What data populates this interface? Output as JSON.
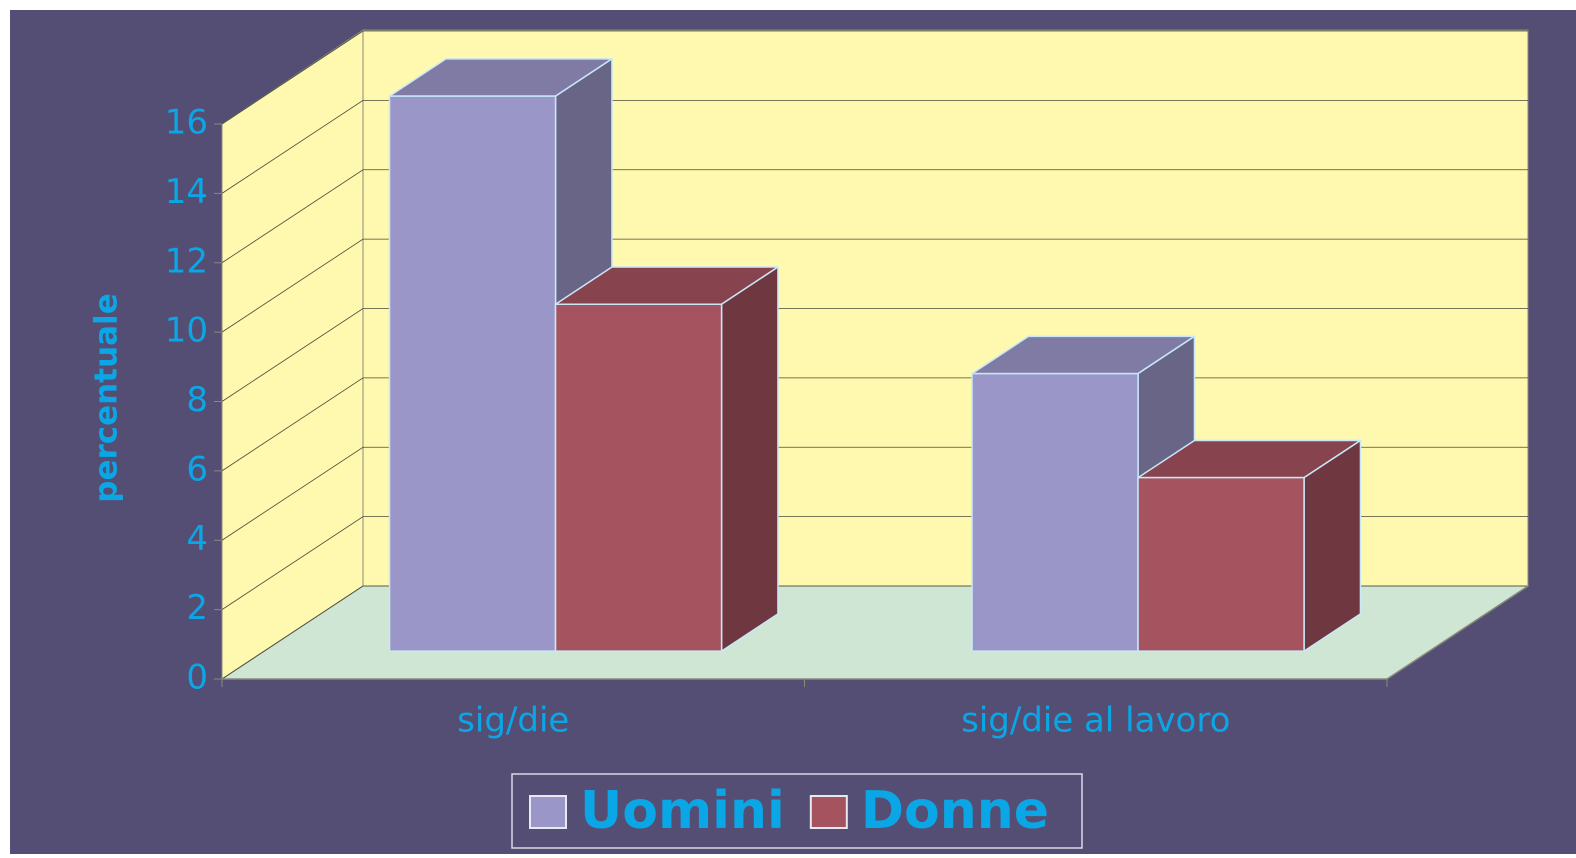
{
  "chart_data": {
    "type": "bar3d",
    "y_label": "percentuale",
    "categories": [
      "sig/die",
      "sig/die al lavoro"
    ],
    "series": [
      {
        "name": "Uomini",
        "color": "#9b96c8",
        "values": [
          16,
          8
        ]
      },
      {
        "name": "Donne",
        "color": "#a5535f",
        "values": [
          10,
          5
        ]
      }
    ],
    "ylim": [
      0,
      16
    ],
    "yticks": [
      0,
      2,
      4,
      6,
      8,
      10,
      12,
      14,
      16
    ],
    "grid": true,
    "legend": "bottom"
  }
}
